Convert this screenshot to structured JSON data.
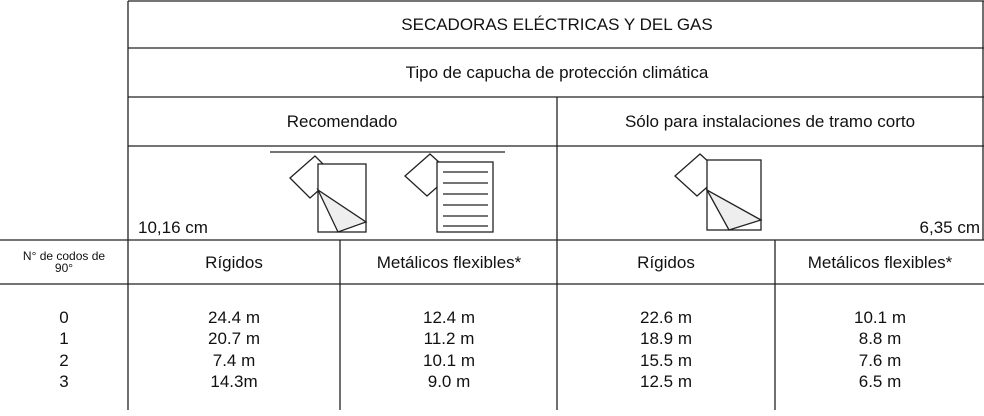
{
  "header": {
    "title": "SECADORAS ELÉCTRICAS Y DEL GAS",
    "subtitle": "Tipo de capucha de protección climática"
  },
  "groups": [
    {
      "label": "Recomendado",
      "size": "10,16 cm"
    },
    {
      "label": "Sólo para instalaciones de tramo corto",
      "size": "6,35 cm"
    }
  ],
  "table": {
    "columns": [
      "N° de codos de 90°",
      "Rígidos",
      "Metálicos flexibles*",
      "Rígidos",
      "Metálicos flexibles*"
    ],
    "rows": [
      [
        "0",
        "24.4 m",
        "12.4 m",
        "22.6 m",
        "10.1 m"
      ],
      [
        "1",
        "20.7 m",
        "11.2 m",
        "18.9 m",
        "8.8 m"
      ],
      [
        "2",
        "7.4 m",
        "10.1 m",
        "15.5 m",
        "7.6 m"
      ],
      [
        "3",
        "14.3m",
        "9.0 m",
        "12.5 m",
        "6.5 m"
      ]
    ]
  }
}
